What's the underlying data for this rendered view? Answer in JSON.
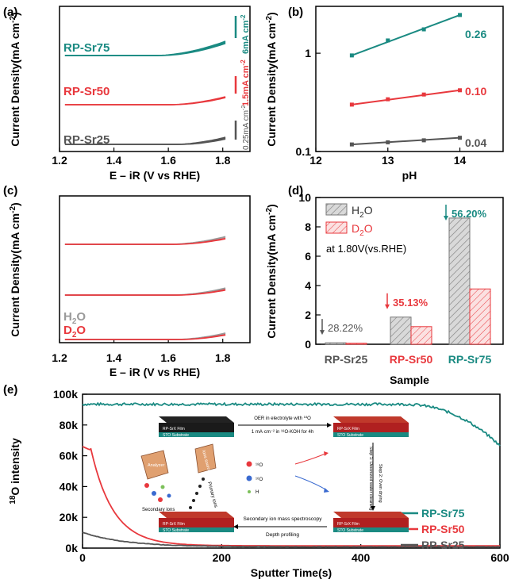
{
  "colors": {
    "teal": "#1a8a82",
    "red": "#e8383d",
    "gray": "#555555",
    "lightgray": "#9a9a9a",
    "axis": "#000000"
  },
  "chart_data": [
    {
      "panel": "(a)",
      "type": "line",
      "xlabel": "E – iR (V vs RHE)",
      "ylabel": "Current Density(mA cm",
      "ylabel_sup": "-2",
      "xlim": [
        1.2,
        1.9
      ],
      "xticks": [
        "1.2",
        "1.4",
        "1.6",
        "1.8"
      ],
      "series": [
        {
          "name": "RP-Sr75",
          "color": "teal",
          "onset": 1.55,
          "scalebar": "6mA cm",
          "scalebar_sup": "-2"
        },
        {
          "name": "RP-Sr50",
          "color": "red",
          "onset": 1.6,
          "scalebar": "1.5mA cm",
          "scalebar_sup": "-2"
        },
        {
          "name": "RP-Sr25",
          "color": "gray",
          "onset": 1.62,
          "scalebar": "0.25mA cm",
          "scalebar_sup": "-2"
        }
      ]
    },
    {
      "panel": "(b)",
      "type": "scatter",
      "xlabel": "pH",
      "ylabel": "Current Density(mA cm",
      "ylabel_sup": "-2",
      "xlim": [
        12,
        14.6
      ],
      "ylim": [
        0.1,
        3
      ],
      "yscale": "log",
      "xticks": [
        "12",
        "13",
        "14"
      ],
      "yticks": [
        "0.1",
        "1"
      ],
      "series": [
        {
          "label": "0.26",
          "color": "teal",
          "x": [
            12.5,
            13,
            13.5,
            14
          ],
          "y": [
            0.95,
            1.35,
            1.75,
            2.45
          ]
        },
        {
          "label": "0.10",
          "color": "red",
          "x": [
            12.5,
            13,
            13.5,
            14
          ],
          "y": [
            0.3,
            0.34,
            0.38,
            0.42
          ]
        },
        {
          "label": "0.04",
          "color": "gray",
          "x": [
            12.5,
            13,
            13.5,
            14
          ],
          "y": [
            0.118,
            0.124,
            0.13,
            0.138
          ]
        }
      ]
    },
    {
      "panel": "(c)",
      "type": "line",
      "xlabel": "E – iR (V vs RHE)",
      "ylabel": "Current Density(mA cm",
      "ylabel_sup": "-2",
      "xlim": [
        1.2,
        1.9
      ],
      "xticks": [
        "1.2",
        "1.4",
        "1.6",
        "1.8"
      ],
      "legend": [
        {
          "name": "H",
          "sub": "2",
          "tail": "O",
          "color": "lightgray"
        },
        {
          "name": "D",
          "sub": "2",
          "tail": "O",
          "color": "red"
        }
      ]
    },
    {
      "panel": "(d)",
      "type": "bar",
      "xlabel": "Sample",
      "ylabel": "Current Density(mA cm",
      "ylabel_sup": "-2",
      "ylim": [
        0,
        10
      ],
      "yticks": [
        "0",
        "2",
        "4",
        "6",
        "8",
        "10"
      ],
      "categories": [
        "RP-Sr25",
        "RP-Sr50",
        "RP-Sr75"
      ],
      "series": [
        {
          "name": "H2O",
          "values": [
            0.1,
            1.85,
            8.6
          ]
        },
        {
          "name": "D2O",
          "values": [
            0.07,
            1.2,
            3.77
          ]
        }
      ],
      "annotations": [
        "28.22%",
        "35.13%",
        "56.20%"
      ],
      "condition": "at 1.80V(vs.RHE)"
    },
    {
      "panel": "(e)",
      "type": "line",
      "xlabel": "Sputter Time(s)",
      "ylabel_pre": "18",
      "ylabel": "O intensity",
      "xlim": [
        0,
        600
      ],
      "ylim": [
        0,
        100000
      ],
      "xticks": [
        "0",
        "200",
        "400",
        "600"
      ],
      "yticks": [
        "0k",
        "20k",
        "40k",
        "60k",
        "80k",
        "100k"
      ],
      "series": [
        {
          "name": "RP-Sr75",
          "color": "teal"
        },
        {
          "name": "RP-Sr50",
          "color": "red"
        },
        {
          "name": "RP-Sr25",
          "color": "gray"
        }
      ]
    }
  ],
  "inset": {
    "film_label": "RP-SrX Film",
    "substrate_label": "STO Substrate",
    "oer_title": "OER in electrolyte with ",
    "oer_title_sup": "18",
    "oer_title_tail": "O",
    "oer_sub": "1 mA·cm⁻² in ¹⁸O-KOH for 4h",
    "step1": "Step 1: Deionized water cleaning",
    "step2": "Step 2: Oven drying",
    "sims_title": "Secondary ion mass spectroscopy",
    "depth": "Depth profiling",
    "analyzer": "Analyzer",
    "ions_source": "Ions source",
    "secondary_ions": "Secondary ions",
    "primary_ions": "Primary ions",
    "o18": "¹⁸O",
    "o16": "¹⁶O",
    "h": "H"
  }
}
